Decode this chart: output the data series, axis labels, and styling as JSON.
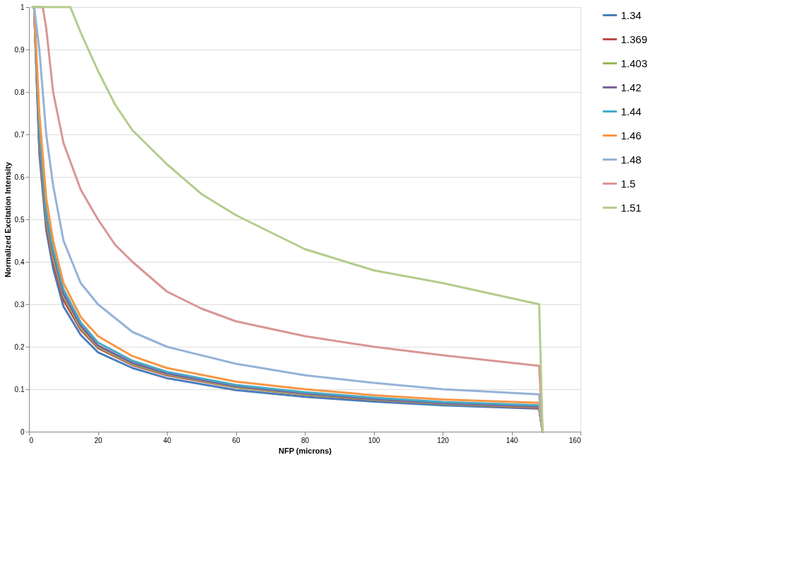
{
  "chart_data": {
    "type": "line",
    "xlabel": "NFP (microns)",
    "ylabel": "Normalized Excitation Intensity",
    "xlim": [
      0,
      160
    ],
    "xticks": [
      0,
      20,
      40,
      60,
      80,
      100,
      120,
      140,
      160
    ],
    "ylim": [
      0,
      1
    ],
    "yticks": [
      0,
      0.1,
      0.2,
      0.3,
      0.4,
      0.5,
      0.6,
      0.7,
      0.8,
      0.9,
      1
    ],
    "grid": "y",
    "legend": "right",
    "line_style": "solid",
    "marker": "none",
    "x": [
      1.5,
      3,
      5,
      7,
      10,
      15,
      20,
      30,
      40,
      60,
      80,
      100,
      120,
      148,
      149
    ],
    "series": [
      {
        "name": "1.34",
        "color": "#4a7ebb",
        "values": [
          1,
          0.655,
          0.475,
          0.385,
          0.295,
          0.228,
          0.187,
          0.15,
          0.126,
          0.098,
          0.082,
          0.071,
          0.062,
          0.054,
          0
        ]
      },
      {
        "name": "1.369",
        "color": "#be4b48",
        "values": [
          1,
          0.67,
          0.49,
          0.4,
          0.31,
          0.24,
          0.197,
          0.157,
          0.133,
          0.104,
          0.087,
          0.075,
          0.066,
          0.056,
          0
        ]
      },
      {
        "name": "1.403",
        "color": "#98b954",
        "values": [
          1,
          0.68,
          0.5,
          0.41,
          0.32,
          0.245,
          0.2,
          0.159,
          0.135,
          0.105,
          0.088,
          0.076,
          0.066,
          0.058,
          0
        ]
      },
      {
        "name": "1.42",
        "color": "#7d60a0",
        "values": [
          1,
          0.69,
          0.51,
          0.42,
          0.325,
          0.25,
          0.203,
          0.162,
          0.137,
          0.107,
          0.09,
          0.077,
          0.067,
          0.059,
          0
        ]
      },
      {
        "name": "1.44",
        "color": "#46aac5",
        "values": [
          1,
          0.71,
          0.52,
          0.43,
          0.335,
          0.257,
          0.21,
          0.167,
          0.141,
          0.11,
          0.093,
          0.08,
          0.07,
          0.062,
          0
        ]
      },
      {
        "name": "1.46",
        "color": "#f79646",
        "values": [
          1,
          0.75,
          0.55,
          0.45,
          0.35,
          0.27,
          0.225,
          0.178,
          0.15,
          0.118,
          0.1,
          0.086,
          0.076,
          0.068,
          0
        ]
      },
      {
        "name": "1.48",
        "color": "#95b3d7",
        "values": [
          1,
          0.9,
          0.7,
          0.58,
          0.45,
          0.35,
          0.3,
          0.235,
          0.2,
          0.16,
          0.133,
          0.115,
          0.1,
          0.088,
          0
        ]
      },
      {
        "name": "1.5",
        "color": "#d99694",
        "x": [
          1,
          4,
          5,
          7,
          10,
          15,
          20,
          25,
          30,
          40,
          50,
          60,
          80,
          100,
          120,
          148,
          149
        ],
        "values": [
          1,
          1,
          0.95,
          0.8,
          0.68,
          0.57,
          0.5,
          0.44,
          0.4,
          0.33,
          0.29,
          0.26,
          0.225,
          0.2,
          0.18,
          0.155,
          0
        ]
      },
      {
        "name": "1.51",
        "color": "#b3cc8c",
        "x": [
          1,
          12,
          15,
          20,
          25,
          30,
          40,
          50,
          60,
          80,
          100,
          120,
          148,
          149
        ],
        "values": [
          1,
          1,
          0.94,
          0.85,
          0.77,
          0.71,
          0.63,
          0.56,
          0.51,
          0.43,
          0.38,
          0.35,
          0.3,
          0
        ]
      }
    ]
  }
}
